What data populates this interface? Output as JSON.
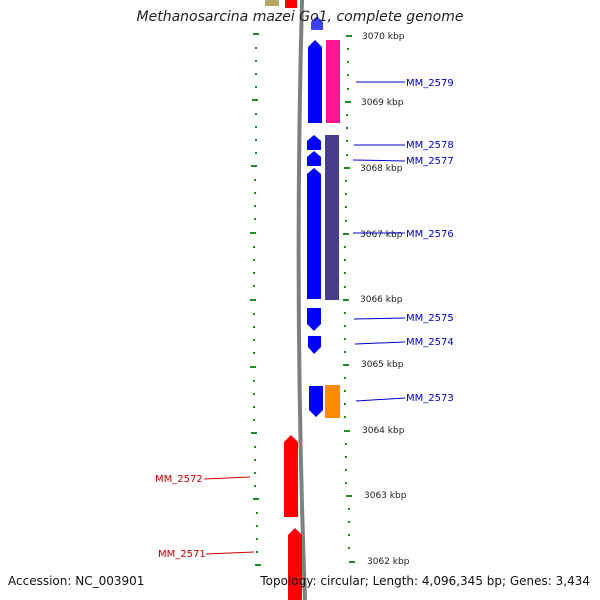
{
  "title": "Methanosarcina mazei Go1, complete genome",
  "accession_label": "Accession: NC_003901",
  "topology_label": "Topology: circular; Length: 4,096,345 bp; Genes: 3,434",
  "colors": {
    "forward_gene": "#ff0000",
    "reverse_gene": "#0000ff",
    "backbone": "#808080",
    "tick": "#228b22",
    "label_forward": "#cc0000",
    "label_reverse": "#0000cc",
    "pink_feature": "#ff1493",
    "slate_feature": "#483d8b",
    "orange_feature": "#ff8c00"
  },
  "scale": {
    "ticks": [
      {
        "label": "3070 kbp"
      },
      {
        "label": "3069 kbp"
      },
      {
        "label": "3068 kbp"
      },
      {
        "label": "3067 kbp"
      },
      {
        "label": "3066 kbp"
      },
      {
        "label": "3065 kbp"
      },
      {
        "label": "3064 kbp"
      },
      {
        "label": "3063 kbp"
      },
      {
        "label": "3062 kbp"
      }
    ]
  },
  "genes": [
    {
      "label": "MM_2579"
    },
    {
      "label": "MM_2578"
    },
    {
      "label": "MM_2577"
    },
    {
      "label": "MM_2576"
    },
    {
      "label": "MM_2575"
    },
    {
      "label": "MM_2574"
    },
    {
      "label": "MM_2573"
    },
    {
      "label": "MM_2572"
    },
    {
      "label": "MM_2571"
    }
  ]
}
